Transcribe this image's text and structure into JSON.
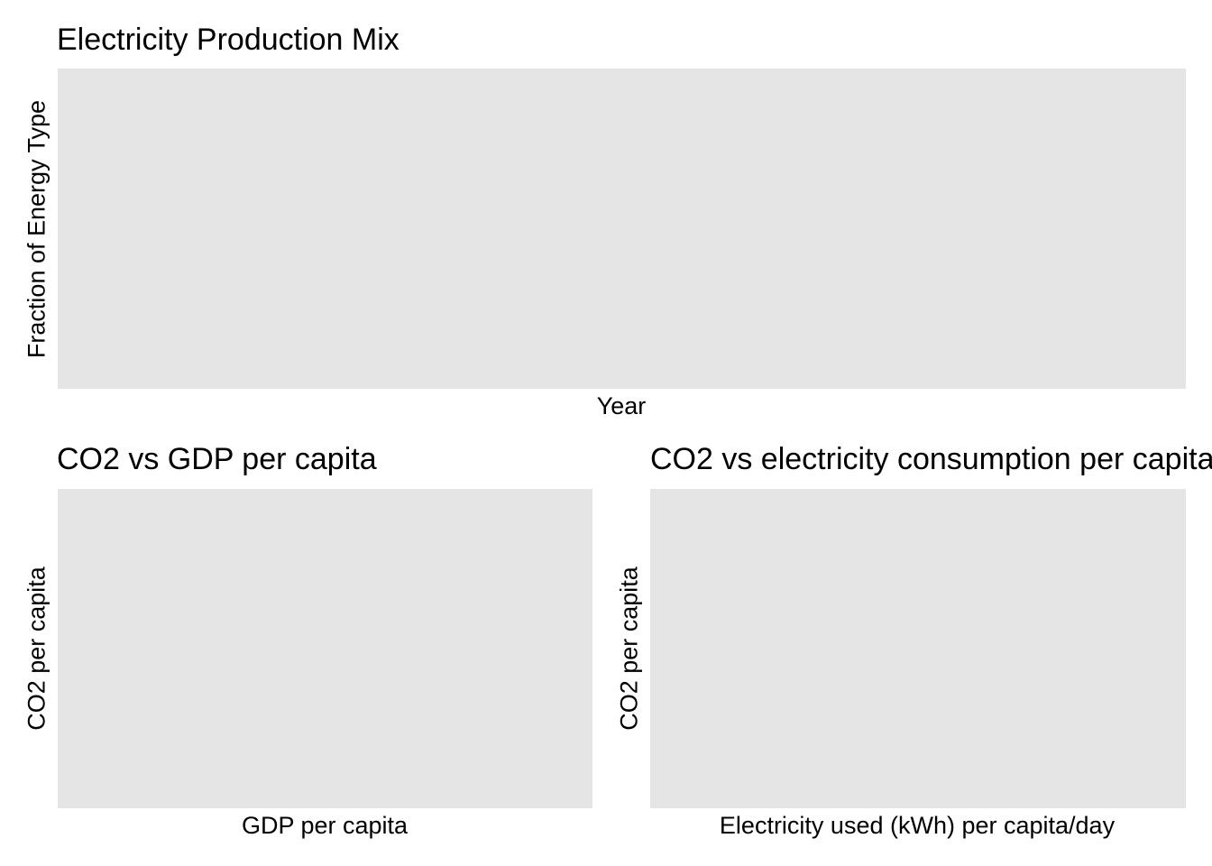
{
  "chart_data": [
    {
      "type": "area",
      "title": "Electricity Production Mix",
      "xlabel": "Year",
      "ylabel": "Fraction of Energy Type",
      "series": [],
      "grid": false
    },
    {
      "type": "scatter",
      "title": "CO2 vs GDP per capita",
      "xlabel": "GDP per capita",
      "ylabel": "CO2 per capita",
      "series": [],
      "grid": false
    },
    {
      "type": "scatter",
      "title": "CO2 vs electricity consumption per capita",
      "xlabel": "Electricity used (kWh) per capita/day",
      "ylabel": "CO2 per capita",
      "series": [],
      "grid": false
    }
  ]
}
